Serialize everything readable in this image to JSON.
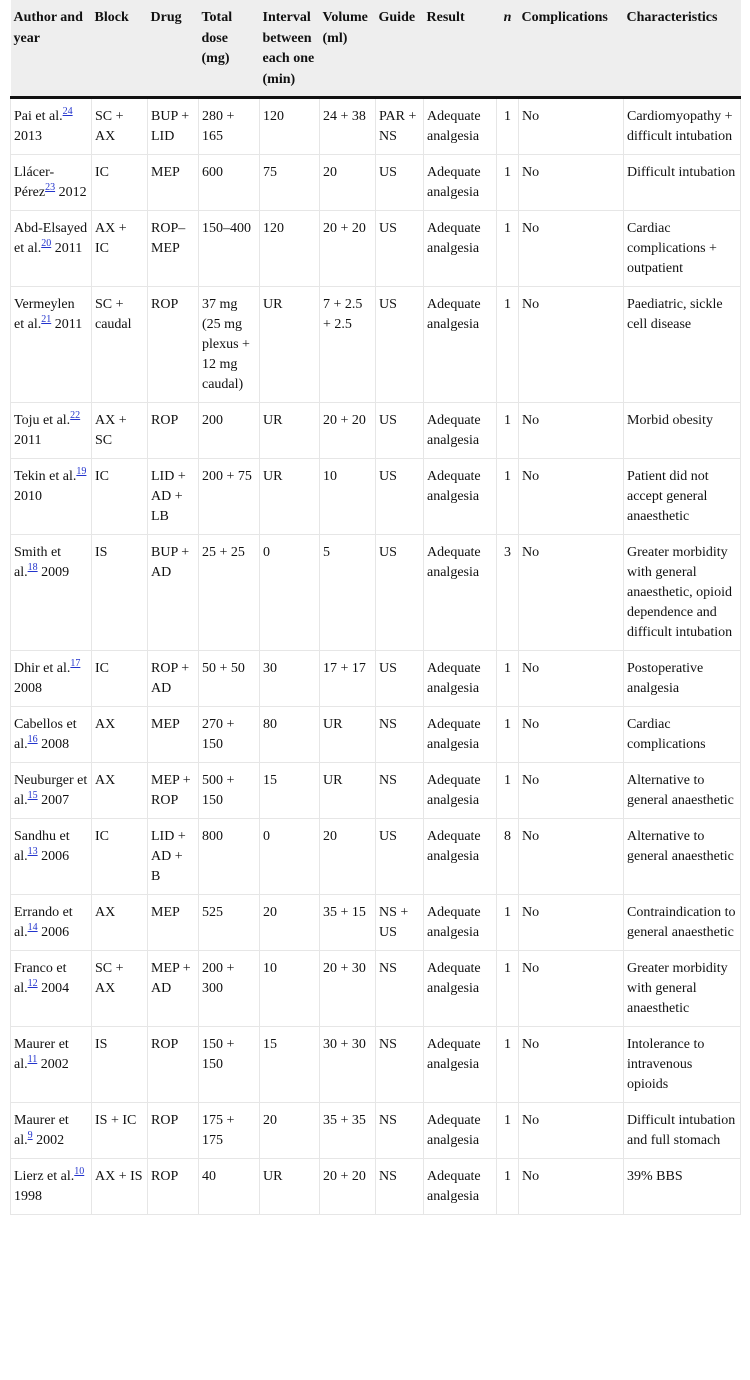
{
  "headers": [
    "Author and year",
    "Block",
    "Drug",
    "Total dose (mg)",
    "Interval between each one (min)",
    "Volume (ml)",
    "Guide",
    "Result",
    "n",
    "Complications",
    "Characteristics"
  ],
  "rows": [
    {
      "author": "Pai et al.",
      "ref": "24",
      "year": "2013",
      "block": "SC + AX",
      "drug": "BUP + LID",
      "dose": "280 + 165",
      "interval": "120",
      "volume": "24 + 38",
      "guide": "PAR + NS",
      "result": "Adequate analgesia",
      "n": "1",
      "complications": "No",
      "characteristics": "Cardiomyopathy + difficult intubation"
    },
    {
      "author": "Llácer-Pérez",
      "ref": "23",
      "year": "2012",
      "block": "IC",
      "drug": "MEP",
      "dose": "600",
      "interval": "75",
      "volume": "20",
      "guide": "US",
      "result": "Adequate analgesia",
      "n": "1",
      "complications": "No",
      "characteristics": "Difficult intubation"
    },
    {
      "author": "Abd-Elsayed et al.",
      "ref": "20",
      "year": "2011",
      "block": "AX + IC",
      "drug": "ROP–MEP",
      "dose": "150–400",
      "interval": "120",
      "volume": "20 + 20",
      "guide": "US",
      "result": "Adequate analgesia",
      "n": "1",
      "complications": "No",
      "characteristics": "Cardiac complications + outpatient"
    },
    {
      "author": "Vermeylen et al.",
      "ref": "21",
      "year": "2011",
      "block": "SC + caudal",
      "drug": "ROP",
      "dose": "37 mg (25 mg plexus + 12 mg caudal)",
      "interval": "UR",
      "volume": "7 + 2.5 + 2.5",
      "guide": "US",
      "result": "Adequate analgesia",
      "n": "1",
      "complications": "No",
      "characteristics": "Paediatric, sickle cell disease"
    },
    {
      "author": "Toju et al.",
      "ref": "22",
      "year": "2011",
      "block": "AX + SC",
      "drug": "ROP",
      "dose": "200",
      "interval": "UR",
      "volume": "20 + 20",
      "guide": "US",
      "result": "Adequate analgesia",
      "n": "1",
      "complications": "No",
      "characteristics": "Morbid obesity"
    },
    {
      "author": "Tekin et al.",
      "ref": "19",
      "year": "2010",
      "block": "IC",
      "drug": "LID + AD + LB",
      "dose": "200 + 75",
      "interval": "UR",
      "volume": "10",
      "guide": "US",
      "result": "Adequate analgesia",
      "n": "1",
      "complications": "No",
      "characteristics": "Patient did not accept general anaesthetic"
    },
    {
      "author": "Smith et al.",
      "ref": "18",
      "year": "2009",
      "block": "IS",
      "drug": "BUP + AD",
      "dose": "25 + 25",
      "interval": "0",
      "volume": "5",
      "guide": "US",
      "result": "Adequate analgesia",
      "n": "3",
      "complications": "No",
      "characteristics": "Greater morbidity with general anaesthetic, opioid dependence and difficult intubation"
    },
    {
      "author": "Dhir et al.",
      "ref": "17",
      "year": "2008",
      "block": "IC",
      "drug": "ROP + AD",
      "dose": "50 + 50",
      "interval": "30",
      "volume": "17 + 17",
      "guide": "US",
      "result": "Adequate analgesia",
      "n": "1",
      "complications": "No",
      "characteristics": "Postoperative analgesia"
    },
    {
      "author": "Cabellos et al.",
      "ref": "16",
      "year": "2008",
      "block": "AX",
      "drug": "MEP",
      "dose": "270 + 150",
      "interval": "80",
      "volume": "UR",
      "guide": "NS",
      "result": "Adequate analgesia",
      "n": "1",
      "complications": "No",
      "characteristics": "Cardiac complications"
    },
    {
      "author": "Neuburger et al.",
      "ref": "15",
      "year": "2007",
      "block": "AX",
      "drug": "MEP + ROP",
      "dose": "500 + 150",
      "interval": "15",
      "volume": "UR",
      "guide": "NS",
      "result": "Adequate analgesia",
      "n": "1",
      "complications": "No",
      "characteristics": "Alternative to general anaesthetic"
    },
    {
      "author": "Sandhu et al.",
      "ref": "13",
      "year": "2006",
      "block": "IC",
      "drug": "LID + AD + B",
      "dose": "800",
      "interval": "0",
      "volume": "20",
      "guide": "US",
      "result": "Adequate analgesia",
      "n": "8",
      "complications": "No",
      "characteristics": "Alternative to general anaesthetic"
    },
    {
      "author": "Errando et al.",
      "ref": "14",
      "year": "2006",
      "block": "AX",
      "drug": "MEP",
      "dose": "525",
      "interval": "20",
      "volume": "35 + 15",
      "guide": "NS + US",
      "result": "Adequate analgesia",
      "n": "1",
      "complications": "No",
      "characteristics": "Contraindication to general anaesthetic"
    },
    {
      "author": "Franco et al.",
      "ref": "12",
      "year": "2004",
      "block": "SC + AX",
      "drug": "MEP + AD",
      "dose": "200 + 300",
      "interval": "10",
      "volume": "20 + 30",
      "guide": "NS",
      "result": "Adequate analgesia",
      "n": "1",
      "complications": "No",
      "characteristics": "Greater morbidity with general anaesthetic"
    },
    {
      "author": "Maurer et al.",
      "ref": "11",
      "year": "2002",
      "block": "IS",
      "drug": "ROP",
      "dose": "150 + 150",
      "interval": "15",
      "volume": "30 + 30",
      "guide": "NS",
      "result": "Adequate analgesia",
      "n": "1",
      "complications": "No",
      "characteristics": "Intolerance to intravenous opioids"
    },
    {
      "author": "Maurer et al.",
      "ref": "9",
      "year": "2002",
      "block": "IS + IC",
      "drug": "ROP",
      "dose": "175 + 175",
      "interval": "20",
      "volume": "35 + 35",
      "guide": "NS",
      "result": "Adequate analgesia",
      "n": "1",
      "complications": "No",
      "characteristics": "Difficult intubation and full stomach"
    },
    {
      "author": "Lierz et al.",
      "ref": "10",
      "year": "1998",
      "block": "AX + IS",
      "drug": "ROP",
      "dose": "40",
      "interval": "UR",
      "volume": "20 + 20",
      "guide": "NS",
      "result": "Adequate analgesia",
      "n": "1",
      "complications": "No",
      "characteristics": "39% BBS"
    }
  ]
}
